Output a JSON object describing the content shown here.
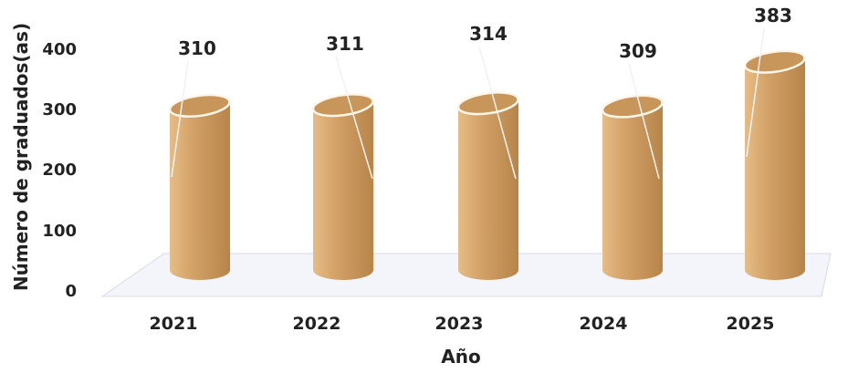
{
  "chart_data": {
    "type": "bar",
    "style": "3d-cylinder",
    "categories": [
      "2021",
      "2022",
      "2023",
      "2024",
      "2025"
    ],
    "values": [
      310,
      311,
      314,
      309,
      383
    ],
    "data_labels": [
      "310",
      "311",
      "314",
      "309",
      "383"
    ],
    "xlabel": "Año",
    "ylabel": "Número de graduados(as)",
    "ylim": [
      0,
      400
    ],
    "yticks": [
      "0",
      "100",
      "200",
      "300",
      "400"
    ],
    "grid": false,
    "legend": "none",
    "colors": {
      "bar": "#d4a36a",
      "bar_dark": "#b78449",
      "bar_light": "#e6bd85",
      "top": "#c8955a",
      "floor": "#e6e8f0",
      "leader": "#f2f2f2"
    }
  }
}
